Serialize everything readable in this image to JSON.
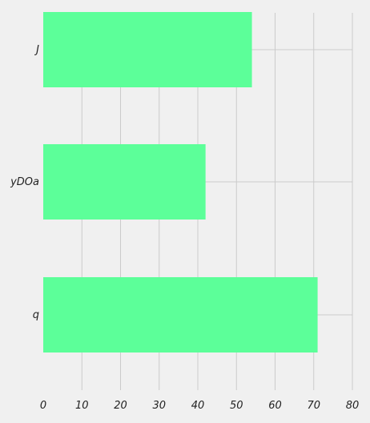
{
  "chart_data": {
    "type": "bar",
    "orientation": "horizontal",
    "categories": [
      "J",
      "yDOa",
      "q"
    ],
    "values": [
      54,
      42,
      71
    ],
    "title": "",
    "xlabel": "",
    "ylabel": "",
    "xlim": [
      0,
      80
    ],
    "x_ticks": [
      0,
      10,
      20,
      30,
      40,
      50,
      60,
      70,
      80
    ],
    "grid": true,
    "legend": "none",
    "colors": {
      "bar": "#5cff99",
      "background": "#f0f0f0",
      "grid": "#cbcbcb",
      "text": "#222222"
    }
  }
}
